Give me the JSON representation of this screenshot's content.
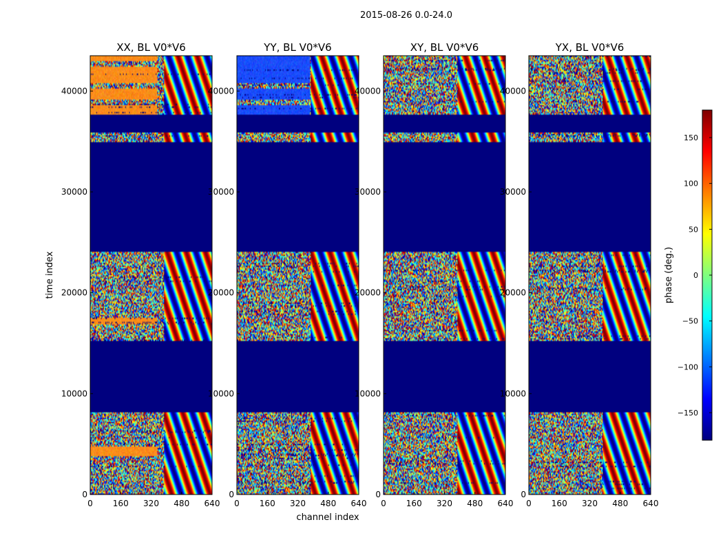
{
  "chart_data": {
    "type": "heatmap",
    "title": "2015-08-26 0.0-24.0",
    "xlabel": "channel index",
    "ylabel": "time index",
    "xlim": [
      0,
      640
    ],
    "ylim": [
      0,
      43500
    ],
    "x_ticks": [
      0,
      160,
      320,
      480,
      640
    ],
    "y_ticks": [
      0,
      10000,
      20000,
      30000,
      40000
    ],
    "panels": [
      {
        "name": "XX, BL V0*V6",
        "tint": "#ff8c1a",
        "tint_fraction": 0.55
      },
      {
        "name": "YY, BL V0*V6",
        "tint": "#1a4dff",
        "tint_fraction": 0.6
      },
      {
        "name": "XY, BL V0*V6",
        "tint": "",
        "tint_fraction": 0
      },
      {
        "name": "YX, BL V0*V6",
        "tint": "",
        "tint_fraction": 0
      }
    ],
    "flagged_ranges": [
      [
        8200,
        15200
      ],
      [
        24000,
        35000
      ],
      [
        35900,
        37700
      ]
    ],
    "flagged_phase": -180,
    "colorbar": {
      "label": "phase (deg.)",
      "range": [
        -180,
        180
      ],
      "ticks": [
        150,
        100,
        50,
        0,
        -50,
        -100,
        -150
      ],
      "colormap": [
        "#00007f",
        "#0000ff",
        "#007fff",
        "#00ffff",
        "#7fff7f",
        "#ffff00",
        "#ff7f00",
        "#ff0000",
        "#7f0000"
      ]
    }
  }
}
